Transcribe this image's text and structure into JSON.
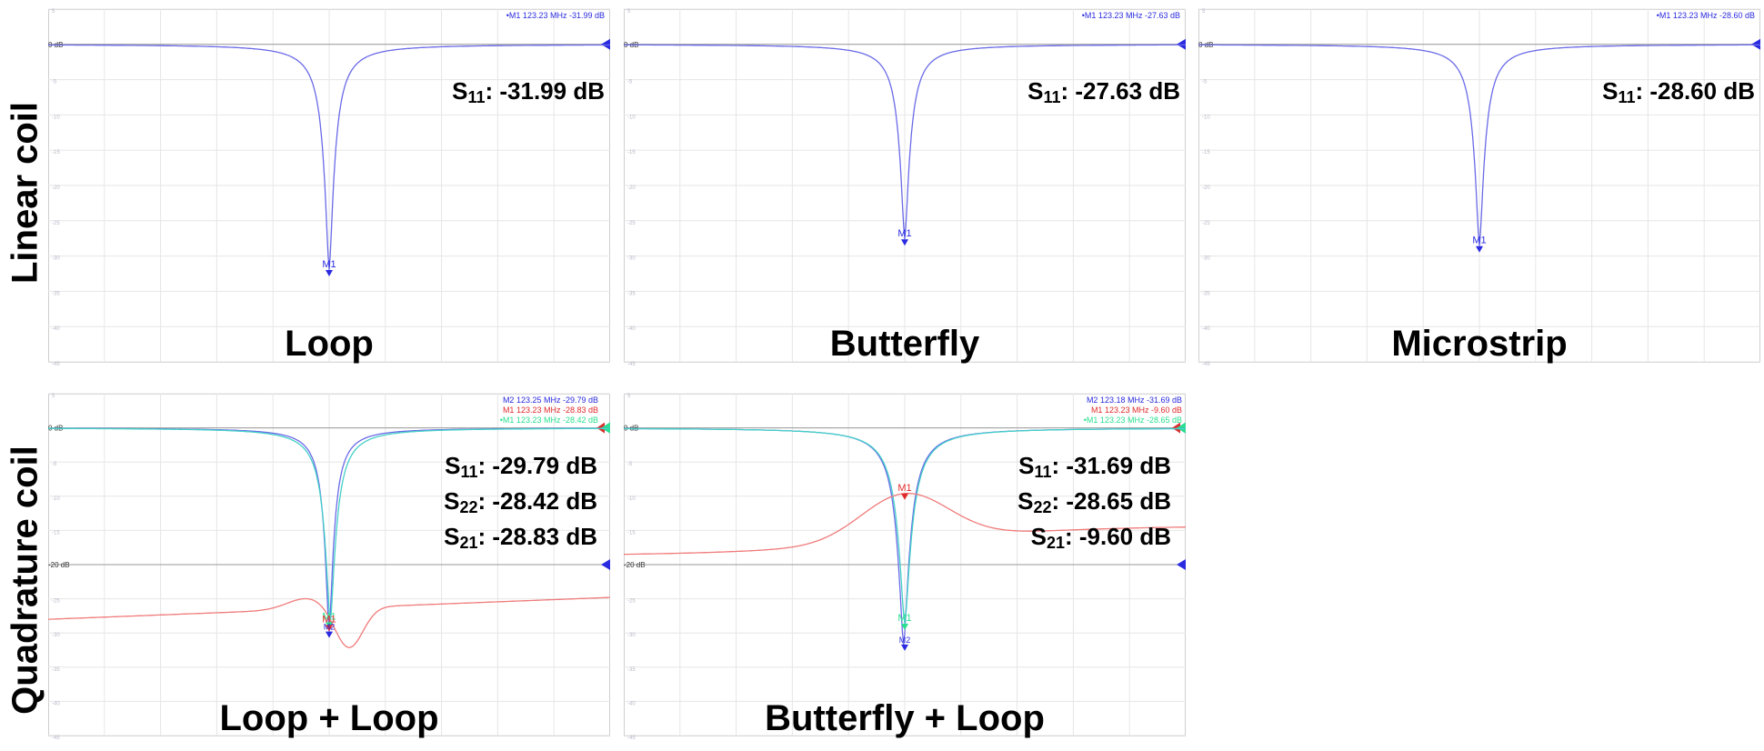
{
  "row_labels": [
    "Linear coil",
    "Quadrature coil"
  ],
  "colors": {
    "s11": "#6a6ae8",
    "s22": "#45d0c8",
    "s21": "#f07a7a",
    "marker_blue": "#2a2ae0",
    "marker_red": "#e02a2a",
    "marker_green": "#2ae090"
  },
  "chart_data": [
    {
      "type": "line",
      "title": "Loop",
      "ylim": [
        -45,
        5
      ],
      "ref_labels": [
        "0 dB"
      ],
      "marker_readouts": [
        {
          "text": "•M1  123.23 MHz  -31.99 dB",
          "color": "blue"
        }
      ],
      "s_values": [
        {
          "param": "S",
          "sub": "11",
          "value": ": -31.99 dB"
        }
      ],
      "series": [
        {
          "param": "S11",
          "min_db": -31.99,
          "center_frac": 0.5,
          "width": 0.05,
          "color_key": "s11"
        }
      ],
      "markers": [
        {
          "label": "M1",
          "db": -31.99,
          "color": "blue"
        }
      ]
    },
    {
      "type": "line",
      "title": "Butterfly",
      "ylim": [
        -45,
        5
      ],
      "ref_labels": [
        "0 dB"
      ],
      "marker_readouts": [
        {
          "text": "•M1  123.23 MHz  -27.63 dB",
          "color": "blue"
        }
      ],
      "s_values": [
        {
          "param": "S",
          "sub": "11",
          "value": ": -27.63 dB"
        }
      ],
      "series": [
        {
          "param": "S11",
          "min_db": -27.63,
          "center_frac": 0.5,
          "width": 0.05,
          "color_key": "s11"
        }
      ],
      "markers": [
        {
          "label": "M1",
          "db": -27.63,
          "color": "blue"
        }
      ]
    },
    {
      "type": "line",
      "title": "Microstrip",
      "ylim": [
        -45,
        5
      ],
      "ref_labels": [
        "0 dB"
      ],
      "marker_readouts": [
        {
          "text": "•M1  123.23 MHz  -28.60 dB",
          "color": "blue"
        }
      ],
      "s_values": [
        {
          "param": "S",
          "sub": "11",
          "value": ": -28.60 dB"
        }
      ],
      "series": [
        {
          "param": "S11",
          "min_db": -28.6,
          "center_frac": 0.5,
          "width": 0.05,
          "color_key": "s11"
        }
      ],
      "markers": [
        {
          "label": "M1",
          "db": -28.6,
          "color": "blue"
        }
      ]
    },
    {
      "type": "line",
      "title": "Loop + Loop",
      "ylim": [
        -45,
        5
      ],
      "ref_labels": [
        "0 dB",
        "-20 dB"
      ],
      "marker_readouts": [
        {
          "text": "M2  123.25 MHz  -29.79 dB",
          "color": "blue"
        },
        {
          "text": "M1  123.23 MHz  -28.83 dB",
          "color": "red"
        },
        {
          "text": "•M1  123.23 MHz  -28.42 dB",
          "color": "green"
        }
      ],
      "s_values": [
        {
          "param": "S",
          "sub": "11",
          "value": ": -29.79 dB"
        },
        {
          "param": "S",
          "sub": "22",
          "value": ": -28.42 dB"
        },
        {
          "param": "S",
          "sub": "21",
          "value": ": -28.83 dB"
        }
      ],
      "series": [
        {
          "param": "S11",
          "min_db": -29.79,
          "center_frac": 0.5,
          "width": 0.045,
          "color_key": "s11"
        },
        {
          "param": "S22",
          "min_db": -28.42,
          "center_frac": 0.502,
          "width": 0.055,
          "color_key": "s22"
        },
        {
          "param": "S21",
          "shape": "coupling_low",
          "color_key": "s21"
        }
      ],
      "markers": [
        {
          "label": "M1",
          "db": -28.42,
          "color": "green"
        },
        {
          "label": "M1",
          "db": -28.83,
          "color": "red"
        },
        {
          "label": "M2",
          "db": -29.79,
          "color": "blue"
        }
      ]
    },
    {
      "type": "line",
      "title": "Butterfly + Loop",
      "ylim": [
        -45,
        5
      ],
      "ref_labels": [
        "0 dB",
        "-20 dB"
      ],
      "marker_readouts": [
        {
          "text": "M2  123.18 MHz  -31.69 dB",
          "color": "blue"
        },
        {
          "text": "M1  123.23 MHz  -9.60 dB",
          "color": "red"
        },
        {
          "text": "•M1  123.23 MHz  -28.65 dB",
          "color": "green"
        }
      ],
      "s_values": [
        {
          "param": "S",
          "sub": "11",
          "value": ": -31.69 dB"
        },
        {
          "param": "S",
          "sub": "22",
          "value": ": -28.65 dB"
        },
        {
          "param": "S",
          "sub": "21",
          "value": ": -9.60 dB"
        }
      ],
      "series": [
        {
          "param": "S11",
          "min_db": -31.69,
          "center_frac": 0.498,
          "width": 0.06,
          "color_key": "s11"
        },
        {
          "param": "S22",
          "min_db": -28.65,
          "center_frac": 0.5,
          "width": 0.065,
          "color_key": "s22"
        },
        {
          "param": "S21",
          "shape": "coupling_peak",
          "peak_db": -9.6,
          "color_key": "s21"
        }
      ],
      "markers": [
        {
          "label": "M1",
          "db": -9.6,
          "color": "red"
        },
        {
          "label": "M1",
          "db": -28.65,
          "color": "green"
        },
        {
          "label": "M2",
          "db": -31.69,
          "color": "blue"
        }
      ]
    }
  ]
}
